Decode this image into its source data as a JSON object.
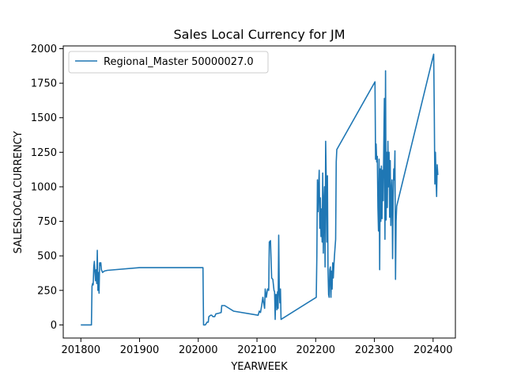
{
  "chart_data": {
    "type": "line",
    "title": "Sales Local Currency for JM",
    "xlabel": "YEARWEEK",
    "ylabel": "SALESLOCALCURRENCY",
    "xlim": [
      201770,
      202438
    ],
    "ylim": [
      -95,
      2020
    ],
    "xticks": [
      201800,
      201900,
      202000,
      202100,
      202200,
      202300,
      202400
    ],
    "yticks": [
      0,
      250,
      500,
      750,
      1000,
      1250,
      1500,
      1750,
      2000
    ],
    "grid": false,
    "legend_position": "top-left",
    "series": [
      {
        "name": "Regional_Master 50000027.0",
        "color": "#1f77b4",
        "points": [
          [
            201801,
            0
          ],
          [
            201810,
            0
          ],
          [
            201818,
            0
          ],
          [
            201819,
            280
          ],
          [
            201820,
            300
          ],
          [
            201821,
            290
          ],
          [
            201822,
            420
          ],
          [
            201823,
            460
          ],
          [
            201824,
            380
          ],
          [
            201825,
            320
          ],
          [
            201826,
            400
          ],
          [
            201827,
            300
          ],
          [
            201828,
            540
          ],
          [
            201829,
            250
          ],
          [
            201830,
            380
          ],
          [
            201831,
            230
          ],
          [
            201832,
            450
          ],
          [
            201833,
            430
          ],
          [
            201834,
            450
          ],
          [
            201835,
            400
          ],
          [
            201837,
            380
          ],
          [
            201840,
            390
          ],
          [
            201845,
            395
          ],
          [
            201900,
            415
          ],
          [
            202008,
            415
          ],
          [
            202009,
            0
          ],
          [
            202012,
            0
          ],
          [
            202015,
            20
          ],
          [
            202017,
            20
          ],
          [
            202018,
            60
          ],
          [
            202021,
            70
          ],
          [
            202023,
            70
          ],
          [
            202025,
            60
          ],
          [
            202028,
            60
          ],
          [
            202030,
            80
          ],
          [
            202035,
            85
          ],
          [
            202039,
            90
          ],
          [
            202040,
            140
          ],
          [
            202045,
            140
          ],
          [
            202060,
            100
          ],
          [
            202102,
            70
          ],
          [
            202104,
            100
          ],
          [
            202106,
            90
          ],
          [
            202108,
            140
          ],
          [
            202110,
            200
          ],
          [
            202111,
            170
          ],
          [
            202113,
            120
          ],
          [
            202114,
            260
          ],
          [
            202116,
            200
          ],
          [
            202118,
            260
          ],
          [
            202120,
            250
          ],
          [
            202121,
            600
          ],
          [
            202123,
            610
          ],
          [
            202125,
            340
          ],
          [
            202127,
            330
          ],
          [
            202129,
            250
          ],
          [
            202130,
            240
          ],
          [
            202131,
            40
          ],
          [
            202132,
            220
          ],
          [
            202133,
            220
          ],
          [
            202134,
            110
          ],
          [
            202135,
            240
          ],
          [
            202136,
            120
          ],
          [
            202137,
            650
          ],
          [
            202138,
            250
          ],
          [
            202139,
            160
          ],
          [
            202140,
            260
          ],
          [
            202141,
            40
          ],
          [
            202201,
            200
          ],
          [
            202202,
            500
          ],
          [
            202203,
            1050
          ],
          [
            202204,
            820
          ],
          [
            202205,
            1000
          ],
          [
            202206,
            1120
          ],
          [
            202207,
            700
          ],
          [
            202208,
            920
          ],
          [
            202209,
            640
          ],
          [
            202210,
            840
          ],
          [
            202211,
            600
          ],
          [
            202212,
            1100
          ],
          [
            202213,
            520
          ],
          [
            202214,
            880
          ],
          [
            202215,
            1000
          ],
          [
            202216,
            420
          ],
          [
            202217,
            1330
          ],
          [
            202218,
            1050
          ],
          [
            202219,
            600
          ],
          [
            202220,
            1080
          ],
          [
            202221,
            400
          ],
          [
            202222,
            220
          ],
          [
            202223,
            200
          ],
          [
            202224,
            400
          ],
          [
            202225,
            420
          ],
          [
            202226,
            200
          ],
          [
            202227,
            390
          ],
          [
            202228,
            260
          ],
          [
            202229,
            450
          ],
          [
            202230,
            340
          ],
          [
            202231,
            430
          ],
          [
            202232,
            500
          ],
          [
            202233,
            560
          ],
          [
            202234,
            620
          ],
          [
            202235,
            1180
          ],
          [
            202236,
            1270
          ],
          [
            202301,
            1760
          ],
          [
            202302,
            1200
          ],
          [
            202303,
            1310
          ],
          [
            202304,
            1180
          ],
          [
            202305,
            1220
          ],
          [
            202306,
            850
          ],
          [
            202307,
            680
          ],
          [
            202308,
            1200
          ],
          [
            202309,
            400
          ],
          [
            202310,
            1130
          ],
          [
            202311,
            750
          ],
          [
            202312,
            1150
          ],
          [
            202313,
            770
          ],
          [
            202314,
            1120
          ],
          [
            202315,
            900
          ],
          [
            202316,
            1300
          ],
          [
            202317,
            1640
          ],
          [
            202318,
            620
          ],
          [
            202319,
            1840
          ],
          [
            202320,
            760
          ],
          [
            202321,
            1250
          ],
          [
            202322,
            850
          ],
          [
            202323,
            1330
          ],
          [
            202324,
            1000
          ],
          [
            202325,
            1250
          ],
          [
            202326,
            780
          ],
          [
            202327,
            1190
          ],
          [
            202328,
            720
          ],
          [
            202329,
            960
          ],
          [
            202330,
            1050
          ],
          [
            202331,
            480
          ],
          [
            202332,
            900
          ],
          [
            202333,
            1130
          ],
          [
            202334,
            1050
          ],
          [
            202335,
            1260
          ],
          [
            202336,
            330
          ],
          [
            202337,
            750
          ],
          [
            202338,
            860
          ],
          [
            202401,
            1960
          ],
          [
            202402,
            1560
          ],
          [
            202403,
            1020
          ],
          [
            202404,
            1250
          ],
          [
            202405,
            1060
          ],
          [
            202406,
            930
          ],
          [
            202407,
            1160
          ],
          [
            202408,
            1090
          ]
        ]
      }
    ]
  }
}
